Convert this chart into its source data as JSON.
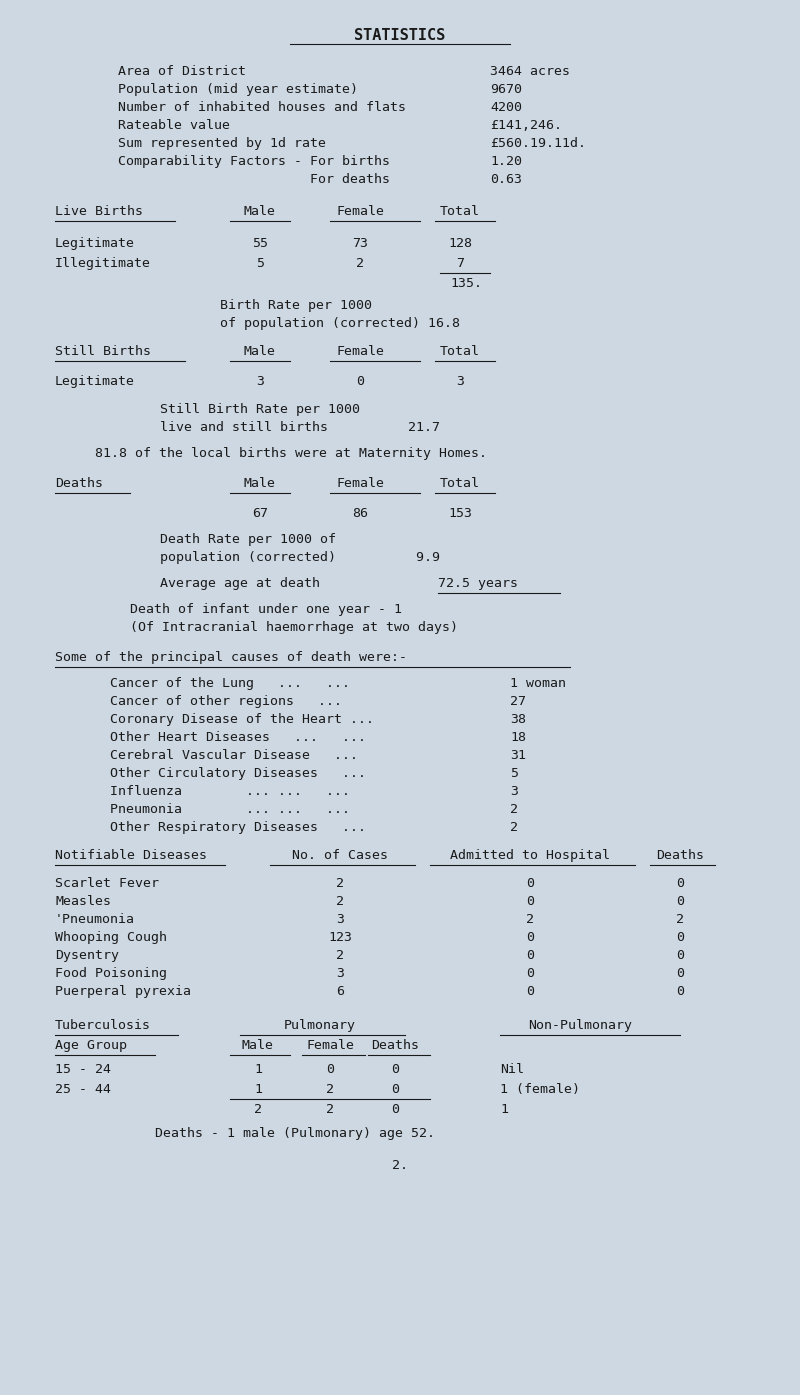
{
  "bg_color": "#cdd8e3",
  "text_color": "#1a1a1a",
  "title": "STATISTICS",
  "stats_left": [
    "Area of District",
    "Population (mid year estimate)",
    "Number of inhabited houses and flats",
    "Rateable value",
    "Sum represented by 1d rate",
    "Comparability Factors - For births",
    "                        For deaths"
  ],
  "stats_right": [
    "3464 acres",
    "9670",
    "4200",
    "£141,246.",
    "£560.19.11d.",
    "1.20",
    "0.63"
  ],
  "live_births_header": [
    "Live Births",
    "Male",
    "Female",
    "Total"
  ],
  "live_births_rows": [
    [
      "Legitimate",
      "55",
      "73",
      "128"
    ],
    [
      "Illegitimate",
      "5",
      "2",
      "7"
    ]
  ],
  "live_births_total": "135.",
  "birth_rate_lines": [
    "Birth Rate per 1000",
    "of population (corrected) 16.8"
  ],
  "still_births_header": [
    "Still Births",
    "Male",
    "Female",
    "Total"
  ],
  "still_births_rows": [
    [
      "Legitimate",
      "3",
      "0",
      "3"
    ]
  ],
  "still_birth_rate_lines": [
    "Still Birth Rate per 1000",
    "live and still births          21.7"
  ],
  "maternity_note": "81.8 of the local births were at Maternity Homes.",
  "deaths_header": [
    "Deaths",
    "Male",
    "Female",
    "Total"
  ],
  "deaths_row": [
    "",
    "67",
    "86",
    "153"
  ],
  "death_rate_lines": [
    "Death Rate per 1000 of",
    "population (corrected)          9.9"
  ],
  "avg_age_label": "Average age at death",
  "avg_age_value": "72.5 years",
  "infant_death_lines": [
    "Death of infant under one year - 1",
    "(Of Intracranial haemorrhage at two days)"
  ],
  "causes_header": "Some of the principal causes of death were:-",
  "causes": [
    [
      "Cancer of the Lung   ...   ...",
      "1 woman"
    ],
    [
      "Cancer of other regions   ...",
      "27"
    ],
    [
      "Coronary Disease of the Heart ...",
      "38"
    ],
    [
      "Other Heart Diseases   ...   ...",
      "18"
    ],
    [
      "Cerebral Vascular Disease   ...",
      "31"
    ],
    [
      "Other Circulatory Diseases   ...",
      "5"
    ],
    [
      "Influenza        ... ...   ...",
      "3"
    ],
    [
      "Pneumonia        ... ...   ...",
      "2"
    ],
    [
      "Other Respiratory Diseases   ...",
      "2"
    ]
  ],
  "notifiable_header": [
    "Notifiable Diseases",
    "No. of Cases",
    "Admitted to Hospital",
    "Deaths"
  ],
  "notifiable_rows": [
    [
      "Scarlet Fever",
      "2",
      "0",
      "0"
    ],
    [
      "Measles",
      "2",
      "0",
      "0"
    ],
    [
      "Pneumonia",
      "3",
      "2",
      "2"
    ],
    [
      "Whooping Cough",
      "123",
      "0",
      "0"
    ],
    [
      "Dysentry",
      "2",
      "0",
      "0"
    ],
    [
      "Food Poisoning",
      "3",
      "0",
      "0"
    ],
    [
      "Puerperal pyrexia",
      "6",
      "0",
      "0"
    ]
  ],
  "tb_header1": [
    "Tuberculosis",
    "Pulmonary",
    "Non-Pulmonary"
  ],
  "tb_header2": [
    "Age Group",
    "Male",
    "Female",
    "Deaths"
  ],
  "tb_rows": [
    [
      "15 - 24",
      "1",
      "0",
      "0",
      "Nil"
    ],
    [
      "25 - 44",
      "1",
      "2",
      "0",
      "1 (female)"
    ]
  ],
  "tb_totals": [
    "2",
    "2",
    "0",
    "1"
  ],
  "tb_note": "Deaths - 1 male (Pulmonary) age 52.",
  "page_num": "2."
}
